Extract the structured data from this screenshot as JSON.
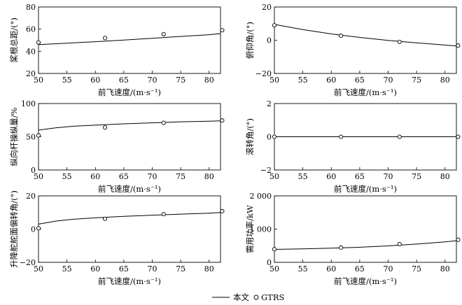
{
  "legend": {
    "line_label": "本文",
    "marker_label": "GTRS"
  },
  "chart_data": [
    {
      "type": "line",
      "xlabel": "前飞速度/(m·s⁻¹)",
      "ylabel": "桨根总距/(°)",
      "xlim": [
        50,
        82
      ],
      "ylim": [
        20,
        80
      ],
      "xticks": [
        50,
        55,
        60,
        65,
        70,
        75,
        80
      ],
      "yticks": [
        20,
        40,
        60,
        80
      ],
      "line": {
        "x": [
          50,
          55,
          60,
          65,
          70,
          75,
          80,
          82
        ],
        "y": [
          46,
          47.3,
          48.7,
          50.2,
          51.8,
          53.4,
          55.0,
          56
        ]
      },
      "markers": {
        "x": [
          50,
          61.7,
          72,
          82.3
        ],
        "y": [
          48,
          52,
          55.5,
          59
        ]
      }
    },
    {
      "type": "line",
      "xlabel": "前飞速度/(m·s⁻¹)",
      "ylabel": "俯仰角/(°)",
      "xlim": [
        50,
        82
      ],
      "ylim": [
        -20,
        20
      ],
      "xticks": [
        50,
        55,
        60,
        65,
        70,
        75,
        80
      ],
      "yticks": [
        -20,
        0,
        20
      ],
      "line": {
        "x": [
          50,
          55,
          60,
          65,
          70,
          75,
          80,
          82
        ],
        "y": [
          9.5,
          6.4,
          3.8,
          1.7,
          -0.1,
          -1.6,
          -2.9,
          -3.5
        ]
      },
      "markers": {
        "x": [
          50,
          61.7,
          72,
          82.3
        ],
        "y": [
          9,
          2.7,
          -1,
          -3.2
        ]
      }
    },
    {
      "type": "line",
      "xlabel": "前飞速度/(m·s⁻¹)",
      "ylabel": "纵向杆操纵量/%",
      "xlim": [
        50,
        82
      ],
      "ylim": [
        0,
        100
      ],
      "xticks": [
        50,
        55,
        60,
        65,
        70,
        75,
        80
      ],
      "yticks": [
        0,
        50,
        100
      ],
      "line": {
        "x": [
          50,
          53,
          56,
          60,
          65,
          70,
          75,
          80,
          82
        ],
        "y": [
          60,
          63.5,
          65.8,
          67.5,
          69.5,
          71,
          72.5,
          73.5,
          74
        ]
      },
      "markers": {
        "x": [
          50,
          61.7,
          72,
          82.3
        ],
        "y": [
          52,
          64,
          71,
          74.5
        ]
      }
    },
    {
      "type": "line",
      "xlabel": "前飞速度/(m·s⁻¹)",
      "ylabel": "滚转角/(°)",
      "xlim": [
        50,
        82
      ],
      "ylim": [
        -2,
        2
      ],
      "xticks": [
        50,
        55,
        60,
        65,
        70,
        75,
        80
      ],
      "yticks": [
        -2,
        0,
        2
      ],
      "line": {
        "x": [
          50,
          82
        ],
        "y": [
          0,
          0
        ]
      },
      "markers": {
        "x": [
          50,
          61.7,
          72,
          82.3
        ],
        "y": [
          0,
          0,
          0,
          0
        ]
      }
    },
    {
      "type": "line",
      "xlabel": "前飞速度/(m·s⁻¹)",
      "ylabel": "升降舵舵面偏转角/(°)",
      "xlim": [
        50,
        82
      ],
      "ylim": [
        -20,
        20
      ],
      "xticks": [
        50,
        55,
        60,
        65,
        70,
        75,
        80
      ],
      "yticks": [
        -20,
        0,
        20
      ],
      "line": {
        "x": [
          50,
          53,
          56,
          60,
          65,
          70,
          75,
          80,
          82
        ],
        "y": [
          3,
          4.8,
          5.9,
          6.8,
          7.7,
          8.4,
          9.0,
          9.6,
          10
        ]
      },
      "markers": {
        "x": [
          50,
          61.7,
          72,
          82.3
        ],
        "y": [
          0.5,
          6.2,
          9,
          10.8
        ]
      }
    },
    {
      "type": "line",
      "xlabel": "前飞速度/(m·s⁻¹)",
      "ylabel": "需用功率/kW",
      "xlim": [
        50,
        82
      ],
      "ylim": [
        0,
        2000
      ],
      "xticks": [
        50,
        55,
        60,
        65,
        70,
        75,
        80
      ],
      "yticks": [
        0,
        1000,
        2000
      ],
      "ytick_labels": [
        "0",
        "1 000",
        "2 000"
      ],
      "line": {
        "x": [
          50,
          55,
          60,
          65,
          70,
          75,
          80,
          82
        ],
        "y": [
          390,
          405,
          425,
          455,
          495,
          550,
          615,
          650
        ]
      },
      "markers": {
        "x": [
          50,
          61.7,
          72,
          82.3
        ],
        "y": [
          395,
          445,
          545,
          680
        ]
      }
    }
  ]
}
